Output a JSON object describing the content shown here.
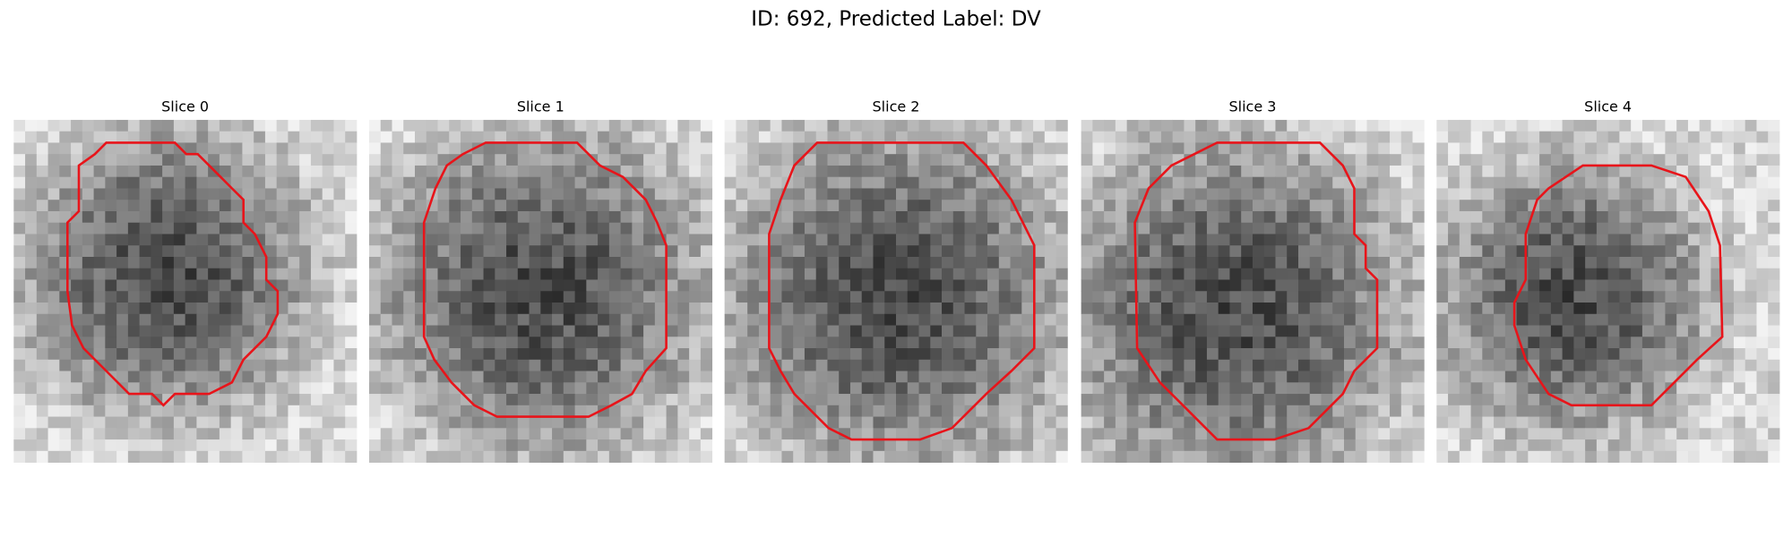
{
  "title": "ID: 692, Predicted Label: DV",
  "panels": [
    {
      "title": "Slice 0"
    },
    {
      "title": "Slice 1"
    },
    {
      "title": "Slice 2"
    },
    {
      "title": "Slice 3"
    },
    {
      "title": "Slice 4"
    }
  ]
}
